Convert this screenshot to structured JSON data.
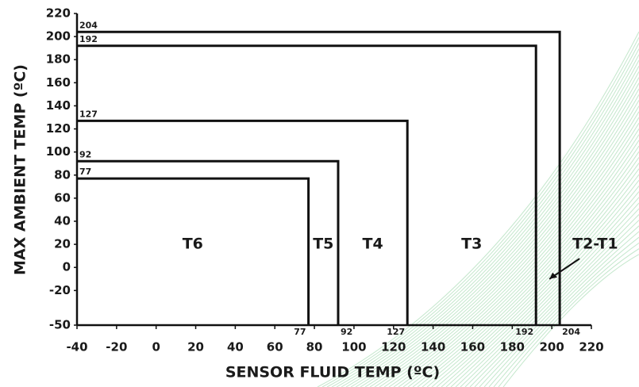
{
  "chart_data": {
    "type": "region",
    "xlabel": "SENSOR FLUID TEMP (ºC)",
    "ylabel": "MAX AMBIENT TEMP (ºC)",
    "categories": [
      "T6",
      "T5",
      "T4",
      "T3",
      "T2-T1"
    ],
    "x": [
      77,
      92,
      127,
      192,
      204
    ],
    "values": [
      77,
      92,
      127,
      192,
      204
    ],
    "color": "#111111",
    "xlim": [
      -40,
      220
    ],
    "ylim": [
      -50,
      220
    ],
    "xticks": [
      -40,
      -20,
      0,
      20,
      40,
      60,
      80,
      100,
      120,
      140,
      160,
      180,
      200,
      220
    ],
    "yticks": [
      -50,
      -20,
      0,
      20,
      40,
      60,
      80,
      100,
      120,
      140,
      160,
      180,
      200,
      220
    ]
  }
}
